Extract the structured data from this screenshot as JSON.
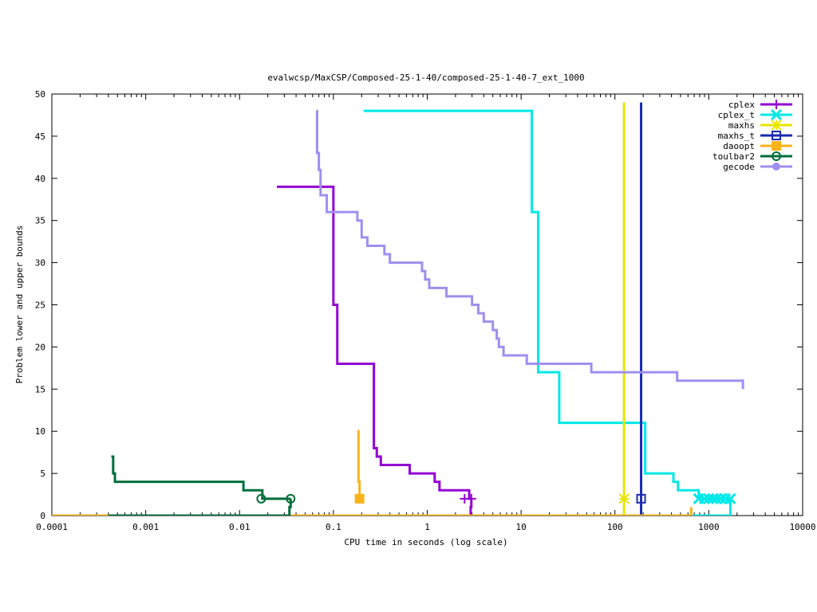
{
  "chart_data": {
    "type": "line",
    "title": "evalwcsp/MaxCSP/Composed-25-1-40/composed-25-1-40-7_ext_1000",
    "xlabel": "CPU time in seconds (log scale)",
    "ylabel": "Problem lower and upper bounds",
    "xscale": "log",
    "xlim": [
      0.0001,
      10000
    ],
    "ylim": [
      0,
      50
    ],
    "xticks": [
      0.0001,
      0.001,
      0.01,
      0.1,
      1,
      10,
      100,
      1000,
      10000
    ],
    "xtick_labels": [
      "0.0001",
      "0.001",
      "0.01",
      "0.1",
      "1",
      "10",
      "100",
      "1000",
      "10000"
    ],
    "yticks": [
      0,
      5,
      10,
      15,
      20,
      25,
      30,
      35,
      40,
      45,
      50
    ],
    "ytick_labels": [
      "0",
      "5",
      "10",
      "15",
      "20",
      "25",
      "30",
      "35",
      "40",
      "45",
      "50"
    ],
    "legend_position": "top-right",
    "grid": false,
    "series": [
      {
        "name": "cplex",
        "color": "#9400d3",
        "marker": "plus",
        "upper": [
          [
            0.025,
            39
          ],
          [
            0.095,
            39
          ],
          [
            0.1,
            25
          ],
          [
            0.11,
            18
          ],
          [
            0.26,
            18
          ],
          [
            0.27,
            8
          ],
          [
            0.29,
            7
          ],
          [
            0.32,
            6
          ],
          [
            0.65,
            5
          ],
          [
            1.2,
            4
          ],
          [
            1.35,
            3
          ],
          [
            2.6,
            3
          ],
          [
            2.8,
            2
          ],
          [
            3.0,
            2
          ]
        ],
        "lower": [
          [
            2.9,
            0
          ],
          [
            2.9,
            1
          ],
          [
            2.95,
            2
          ]
        ],
        "markers": [
          [
            2.5,
            2
          ],
          [
            2.95,
            2
          ]
        ]
      },
      {
        "name": "cplex_t",
        "color": "#00e8e8",
        "marker": "x",
        "upper": [
          [
            0.21,
            48
          ],
          [
            12.5,
            48
          ],
          [
            13,
            36
          ],
          [
            15,
            36
          ],
          [
            15.2,
            17
          ],
          [
            25,
            17
          ],
          [
            25.5,
            11
          ],
          [
            205,
            11
          ],
          [
            210,
            5
          ],
          [
            370,
            5
          ],
          [
            420,
            4
          ],
          [
            470,
            3
          ],
          [
            750,
            3
          ],
          [
            780,
            2
          ],
          [
            1800,
            2
          ]
        ],
        "lower": [
          [
            0.0001,
            0
          ],
          [
            1650,
            0
          ],
          [
            1700,
            2
          ]
        ],
        "markers": [
          [
            780,
            2
          ],
          [
            900,
            2
          ],
          [
            1000,
            2
          ],
          [
            1100,
            2
          ],
          [
            1200,
            2
          ],
          [
            1350,
            2
          ],
          [
            1500,
            2
          ],
          [
            1700,
            2
          ]
        ]
      },
      {
        "name": "maxhs",
        "color": "#e6e600",
        "marker": "star",
        "upper": [
          [
            125,
            49
          ],
          [
            125,
            2
          ]
        ],
        "lower": [
          [
            0.0001,
            0
          ],
          [
            125,
            0
          ],
          [
            125,
            2
          ]
        ],
        "markers": [
          [
            125,
            2
          ]
        ]
      },
      {
        "name": "maxhs_t",
        "color": "#1a2bb3",
        "marker": "box",
        "upper": [
          [
            190,
            49
          ],
          [
            190,
            2
          ]
        ],
        "lower": [
          [
            0.0001,
            0
          ],
          [
            190,
            0
          ],
          [
            190,
            2
          ]
        ],
        "markers": [
          [
            190,
            2
          ]
        ]
      },
      {
        "name": "daoopt",
        "color": "#f9b31a",
        "marker": "filled-box",
        "upper": [
          [
            0.18,
            10
          ],
          [
            0.185,
            4
          ],
          [
            0.19,
            2
          ]
        ],
        "lower": [
          [
            0.0001,
            0
          ],
          [
            650,
            0
          ],
          [
            650,
            1
          ]
        ],
        "markers": [
          [
            0.19,
            2
          ]
        ]
      },
      {
        "name": "toulbar2",
        "color": "#006e3a",
        "marker": "circle",
        "upper": [
          [
            0.00043,
            7
          ],
          [
            0.00045,
            5
          ],
          [
            0.00047,
            4
          ],
          [
            0.0105,
            4
          ],
          [
            0.011,
            3
          ],
          [
            0.017,
            3
          ],
          [
            0.0175,
            2
          ],
          [
            0.035,
            2
          ]
        ],
        "lower": [
          [
            0.0004,
            0
          ],
          [
            0.033,
            0
          ],
          [
            0.034,
            1
          ],
          [
            0.035,
            2
          ]
        ],
        "markers": [
          [
            0.017,
            2
          ],
          [
            0.035,
            2
          ]
        ]
      },
      {
        "name": "gecode",
        "color": "#9f8ff0",
        "marker": "filled-circle",
        "upper": [
          [
            0.066,
            48
          ],
          [
            0.067,
            43
          ],
          [
            0.07,
            41
          ],
          [
            0.073,
            38
          ],
          [
            0.083,
            38
          ],
          [
            0.085,
            36
          ],
          [
            0.17,
            36
          ],
          [
            0.18,
            35
          ],
          [
            0.2,
            33
          ],
          [
            0.23,
            32
          ],
          [
            0.32,
            32
          ],
          [
            0.35,
            31
          ],
          [
            0.4,
            30
          ],
          [
            0.8,
            30
          ],
          [
            0.88,
            29
          ],
          [
            0.95,
            28
          ],
          [
            1.05,
            27
          ],
          [
            1.5,
            27
          ],
          [
            1.6,
            26
          ],
          [
            2.8,
            26
          ],
          [
            3.0,
            25
          ],
          [
            3.5,
            24
          ],
          [
            4.0,
            23
          ],
          [
            5.0,
            22
          ],
          [
            5.5,
            21
          ],
          [
            5.8,
            20
          ],
          [
            6.5,
            19
          ],
          [
            11,
            19
          ],
          [
            11.5,
            18
          ],
          [
            55,
            18
          ],
          [
            56,
            17
          ],
          [
            450,
            17
          ],
          [
            460,
            16
          ],
          [
            2300,
            16
          ],
          [
            2310,
            15
          ]
        ],
        "lower": [],
        "markers": []
      }
    ]
  }
}
